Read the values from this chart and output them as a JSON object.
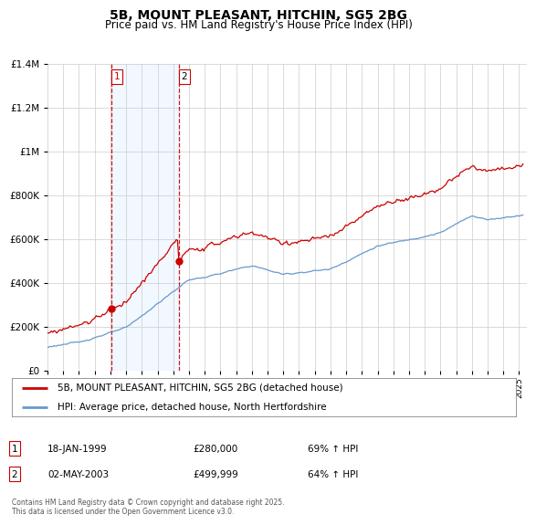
{
  "title": "5B, MOUNT PLEASANT, HITCHIN, SG5 2BG",
  "subtitle": "Price paid vs. HM Land Registry's House Price Index (HPI)",
  "legend_line1": "5B, MOUNT PLEASANT, HITCHIN, SG5 2BG (detached house)",
  "legend_line2": "HPI: Average price, detached house, North Hertfordshire",
  "footer": "Contains HM Land Registry data © Crown copyright and database right 2025.\nThis data is licensed under the Open Government Licence v3.0.",
  "purchase1_date": "18-JAN-1999",
  "purchase1_price": 280000,
  "purchase1_label": "69% ↑ HPI",
  "purchase1_x": 1999.05,
  "purchase1_y": 280000,
  "purchase2_date": "02-MAY-2003",
  "purchase2_price": 499999,
  "purchase2_label": "64% ↑ HPI",
  "purchase2_x": 2003.37,
  "purchase2_y": 499999,
  "red_color": "#CC0000",
  "blue_color": "#6699CC",
  "vline_color": "#CC0000",
  "shade_color": "#DDEEFF",
  "bg_color": "#FFFFFF",
  "grid_color": "#CCCCCC",
  "ylim": [
    0,
    1400000
  ],
  "xlim_start": 1995.0,
  "xlim_end": 2025.5
}
